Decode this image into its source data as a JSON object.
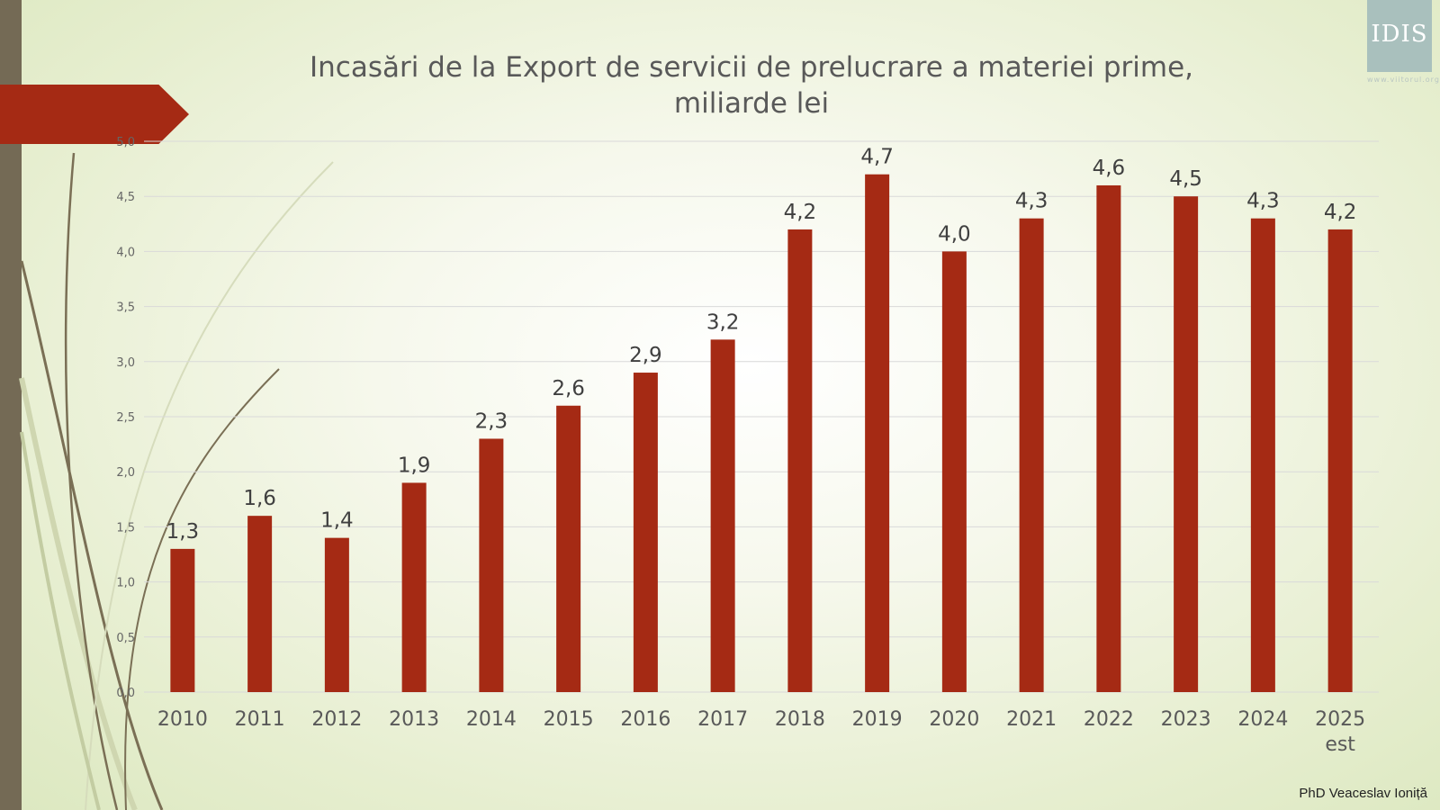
{
  "slide": {
    "author": "PhD Veaceslav Ioniță",
    "logo_text": "IDIS",
    "logo_url": "www.viitorul.org"
  },
  "chart_data": {
    "type": "bar",
    "title_line1": "Incasări de la Export de servicii de prelucrare a materiei prime,",
    "title_line2": "miliarde lei",
    "categories": [
      "2010",
      "2011",
      "2012",
      "2013",
      "2014",
      "2015",
      "2016",
      "2017",
      "2018",
      "2019",
      "2020",
      "2021",
      "2022",
      "2023",
      "2024",
      "2025 est"
    ],
    "values": [
      1.3,
      1.6,
      1.4,
      1.9,
      2.3,
      2.6,
      2.9,
      3.2,
      4.2,
      4.7,
      4.0,
      4.3,
      4.6,
      4.5,
      4.3,
      4.2
    ],
    "value_labels": [
      "1,3",
      "1,6",
      "1,4",
      "1,9",
      "2,3",
      "2,6",
      "2,9",
      "3,2",
      "4,2",
      "4,7",
      "4,0",
      "4,3",
      "4,6",
      "4,5",
      "4,3",
      "4,2"
    ],
    "y_ticks": [
      0,
      0.5,
      1,
      1.5,
      2,
      2.5,
      3,
      3.5,
      4,
      4.5,
      5
    ],
    "y_tick_labels": [
      "0,0",
      "0,5",
      "1,0",
      "1,5",
      "2,0",
      "2,5",
      "3,0",
      "3,5",
      "4,0",
      "4,5",
      "5,0"
    ],
    "ylim": [
      0,
      5
    ],
    "grid": true,
    "bar_color": "#a52a14"
  }
}
